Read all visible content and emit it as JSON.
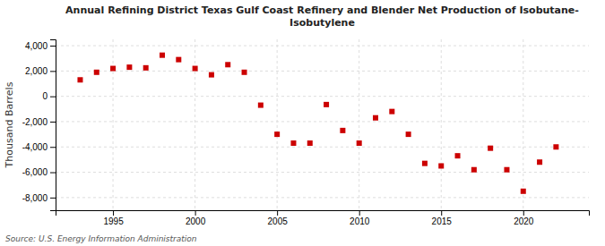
{
  "chart_data": {
    "type": "scatter",
    "title": "Annual Refining District Texas Gulf Coast Refinery and Blender Net Production of Isobutane-\nIsobutylene",
    "ylabel": "Thousand Barrels",
    "source": "Source: U.S. Energy Information Administration",
    "x": [
      1993,
      1994,
      1995,
      1996,
      1997,
      1998,
      1999,
      2000,
      2001,
      2002,
      2003,
      2004,
      2005,
      2006,
      2007,
      2008,
      2009,
      2010,
      2011,
      2012,
      2013,
      2014,
      2015,
      2016,
      2017,
      2018,
      2019,
      2020,
      2021,
      2022
    ],
    "values": [
      1300,
      1900,
      2200,
      2300,
      2250,
      3250,
      2900,
      2200,
      1700,
      2500,
      1900,
      -700,
      -3000,
      -3700,
      -3700,
      -650,
      -2700,
      -3700,
      -1700,
      -1200,
      -3000,
      -5300,
      -5500,
      -4700,
      -5800,
      -4100,
      -5800,
      -7500,
      -5200,
      -4000
    ],
    "color": "#cc0000",
    "marker": "square",
    "xlim": [
      1991.5,
      2024
    ],
    "xticks": [
      1995,
      2000,
      2005,
      2010,
      2015,
      2020
    ],
    "ylim": [
      -9000,
      4500
    ],
    "yticks": [
      {
        "value": -8000,
        "label": "-8,000"
      },
      {
        "value": -6000,
        "label": "-6,000"
      },
      {
        "value": -4000,
        "label": "-4,000"
      },
      {
        "value": -2000,
        "label": "-2,000"
      },
      0,
      {
        "value": 2000,
        "label": "2,000"
      },
      {
        "value": 4000,
        "label": "4,000"
      }
    ],
    "grid": true
  }
}
